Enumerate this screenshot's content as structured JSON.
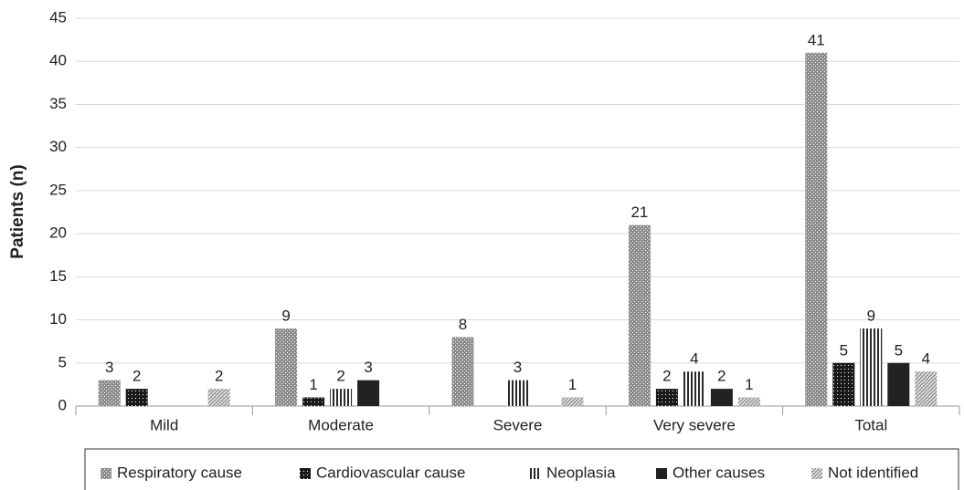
{
  "chart_data": {
    "type": "bar",
    "y_label": "Patients (n)",
    "categories": [
      "Mild",
      "Moderate",
      "Severe",
      "Very severe",
      "Total"
    ],
    "series": [
      {
        "name": "Respiratory cause",
        "color": "#8c8c8c",
        "values": [
          3,
          9,
          8,
          21,
          41
        ]
      },
      {
        "name": "Cardiovascular cause",
        "color": "#1a1a1a",
        "values": [
          2,
          1,
          null,
          2,
          5
        ]
      },
      {
        "name": "Neoplasia",
        "color": "#2a2a2a",
        "values": [
          null,
          2,
          3,
          4,
          9
        ]
      },
      {
        "name": "Other causes",
        "color": "#222222",
        "values": [
          null,
          3,
          null,
          2,
          5
        ]
      },
      {
        "name": "Not identified",
        "color": "#9a9a9a",
        "values": [
          2,
          null,
          1,
          1,
          4
        ]
      }
    ],
    "ylim": [
      0,
      45
    ],
    "yticks": [
      0,
      5,
      10,
      15,
      20,
      25,
      30,
      35,
      40,
      45
    ],
    "grid": true,
    "legend": "bottom"
  }
}
